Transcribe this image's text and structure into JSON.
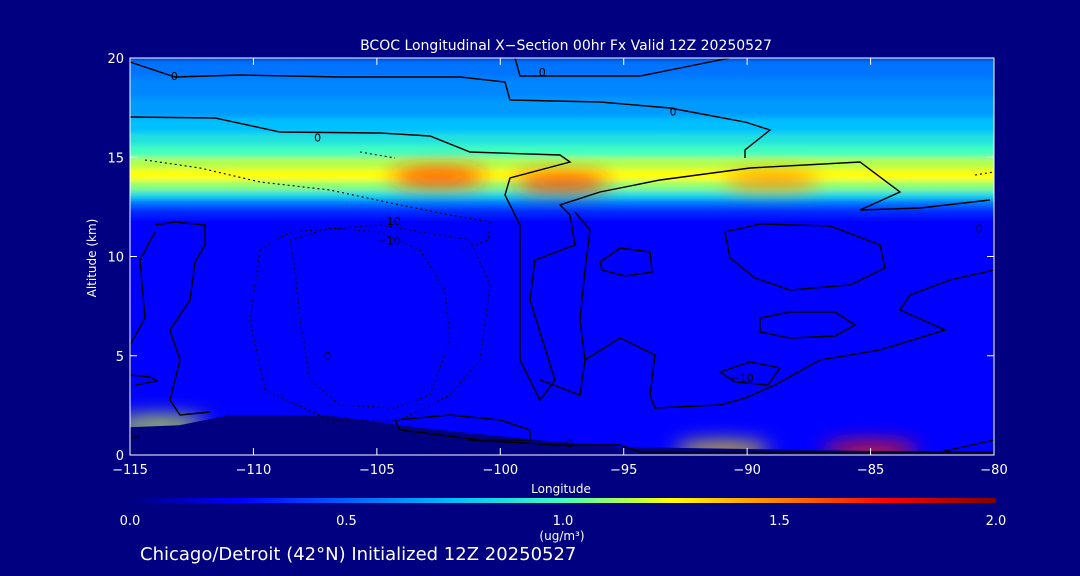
{
  "chart_data": {
    "type": "heatmap",
    "title": "BCOC Longitudinal X−Section 00hr  Fx Valid 12Z 20250527",
    "xlabel": "Longitude",
    "ylabel": "Altitude (km)",
    "xlim": [
      -115,
      -80
    ],
    "ylim": [
      0,
      20
    ],
    "x_ticks": [
      -115,
      -110,
      -105,
      -100,
      -95,
      -90,
      -85,
      -80
    ],
    "x_tick_labels": [
      "−115",
      "−110",
      "−105",
      "−100",
      "−95",
      "−90",
      "−85",
      "−80"
    ],
    "y_ticks": [
      0,
      5,
      10,
      15,
      20
    ],
    "y_tick_labels": [
      "0",
      "5",
      "10",
      "15",
      "20"
    ],
    "colorbar": {
      "min": 0.0,
      "max": 2.0,
      "ticks": [
        0.0,
        0.5,
        1.0,
        1.5,
        2.0
      ],
      "tick_labels": [
        "0.0",
        "0.5",
        "1.0",
        "1.5",
        "2.0"
      ],
      "unit_label": "(ug/m³)",
      "colors": [
        "#000080",
        "#0000ff",
        "#0060ff",
        "#00c0ff",
        "#40ffc0",
        "#ffff00",
        "#ff8000",
        "#ff0000",
        "#800000"
      ]
    },
    "bands": [
      {
        "z0": 20.0,
        "z1": 19.0,
        "value": 0.55
      },
      {
        "z0": 19.0,
        "z1": 18.0,
        "value": 0.6
      },
      {
        "z0": 18.0,
        "z1": 17.0,
        "value": 0.65
      },
      {
        "z0": 17.0,
        "z1": 16.2,
        "value": 0.75
      },
      {
        "z0": 16.2,
        "z1": 15.6,
        "value": 0.88
      },
      {
        "z0": 15.6,
        "z1": 15.0,
        "value": 1.0
      },
      {
        "z0": 15.0,
        "z1": 14.4,
        "value": 1.15
      },
      {
        "z0": 14.4,
        "z1": 13.8,
        "value": 1.25
      },
      {
        "z0": 13.8,
        "z1": 13.3,
        "value": 1.1
      },
      {
        "z0": 13.3,
        "z1": 12.9,
        "value": 0.85
      },
      {
        "z0": 12.9,
        "z1": 12.5,
        "value": 0.55
      },
      {
        "z0": 12.5,
        "z1": 12.0,
        "value": 0.35
      },
      {
        "z0": 12.0,
        "z1": 0.0,
        "value": 0.25
      }
    ],
    "peaks": [
      {
        "lon": -102.5,
        "z": 14.0,
        "value": 1.7
      },
      {
        "lon": -97.5,
        "z": 13.7,
        "value": 1.7
      },
      {
        "lon": -89.0,
        "z": 13.8,
        "value": 1.5
      },
      {
        "lon": -113.8,
        "z": 1.5,
        "value": 1.2
      },
      {
        "lon": -85.0,
        "z": 0.2,
        "value": 1.7
      },
      {
        "lon": -91.0,
        "z": 0.2,
        "value": 1.3
      }
    ],
    "terrain": [
      [
        -115,
        1.4
      ],
      [
        -113,
        1.5
      ],
      [
        -111,
        2.0
      ],
      [
        -109,
        2.0
      ],
      [
        -107,
        2.0
      ],
      [
        -104,
        1.5
      ],
      [
        -102,
        1.2
      ],
      [
        -98,
        0.7
      ],
      [
        -95,
        0.4
      ],
      [
        -90,
        0.3
      ],
      [
        -85,
        0.2
      ],
      [
        -80,
        0.2
      ]
    ],
    "contour_labels": [
      {
        "text": "0",
        "lon": -113.2,
        "z": 19.1
      },
      {
        "text": "0",
        "lon": -98.3,
        "z": 19.3
      },
      {
        "text": "0",
        "lon": -93.0,
        "z": 17.3
      },
      {
        "text": "0",
        "lon": -107.4,
        "z": 16.0
      },
      {
        "text": "−10",
        "lon": -104.5,
        "z": 11.8
      },
      {
        "text": "−10",
        "lon": -104.5,
        "z": 10.8
      },
      {
        "text": "0",
        "lon": -80.6,
        "z": 11.4
      },
      {
        "text": "0",
        "lon": -107.0,
        "z": 5.0
      },
      {
        "text": "−10",
        "lon": -90.2,
        "z": 3.9
      },
      {
        "text": "0",
        "lon": -97.2,
        "z": 0.6
      }
    ]
  },
  "caption": "Chicago/Detroit (42°N) Initialized 12Z 20250527"
}
